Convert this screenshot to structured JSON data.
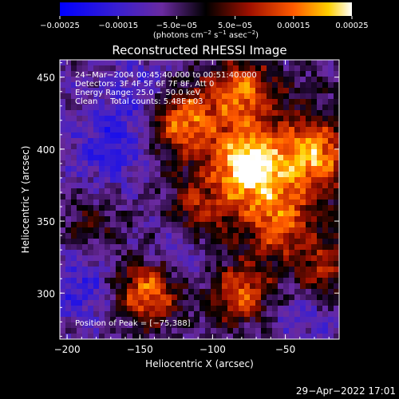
{
  "chart_data": {
    "type": "heatmap",
    "title": "Reconstructed RHESSI Image",
    "xlabel": "Heliocentric X (arcsec)",
    "ylabel": "Heliocentric Y (arcsec)",
    "xlim": [
      -205,
      -13
    ],
    "ylim": [
      268,
      462
    ],
    "xticks": [
      -200,
      -150,
      -100,
      -50
    ],
    "xtick_labels": [
      "−200",
      "−150",
      "−100",
      "−50"
    ],
    "yticks": [
      300,
      350,
      400,
      450
    ],
    "ytick_labels": [
      "300",
      "350",
      "400",
      "450"
    ],
    "colorbar": {
      "range": [
        -0.00025,
        0.00025
      ],
      "ticks": [
        -0.00025,
        -0.00015,
        -5e-05,
        5e-05,
        0.00015,
        0.00025
      ],
      "tick_labels": [
        "−0.00025",
        "−0.00015",
        "−5.0e−05",
        "5.0e−05",
        "0.00015",
        "0.00025"
      ],
      "units_main": "(photons cm",
      "units_exp1": "−2",
      "units_mid": " s",
      "units_exp2": "−1",
      "units_end": " asec",
      "units_exp3": "−2",
      "units_close": ")"
    },
    "annotations": [
      "24−Mar−2004 00:45:40.000 to 00:51:40.000",
      "Detectors: 3F 4F 5F 6F 7F 8F, Att 0",
      "Energy Range: 25.0 − 50.0 keV",
      "Clean     Total counts: 5.48E+03"
    ],
    "peak_label": "Position of Peak = [−75,388]",
    "peak": [
      -75,
      388
    ],
    "hotspots": [
      {
        "x": -75,
        "y": 388,
        "level": 1.0
      },
      {
        "x": -120,
        "y": 420,
        "level": 0.75
      },
      {
        "x": -30,
        "y": 395,
        "level": 0.7
      },
      {
        "x": -55,
        "y": 350,
        "level": 0.6
      },
      {
        "x": -80,
        "y": 440,
        "level": 0.65
      },
      {
        "x": -145,
        "y": 300,
        "level": 0.8
      },
      {
        "x": -80,
        "y": 300,
        "level": 0.7
      },
      {
        "x": -25,
        "y": 315,
        "level": 0.5
      },
      {
        "x": -110,
        "y": 355,
        "level": 0.45
      },
      {
        "x": -185,
        "y": 345,
        "level": 0.3
      }
    ],
    "coldspots": [
      {
        "x": -170,
        "y": 400,
        "level": -0.7
      },
      {
        "x": -150,
        "y": 440,
        "level": -0.5
      },
      {
        "x": -190,
        "y": 305,
        "level": -0.6
      },
      {
        "x": -120,
        "y": 330,
        "level": -0.5
      },
      {
        "x": -40,
        "y": 290,
        "level": -0.45
      }
    ]
  },
  "footer": {
    "date": "29−Apr−2022 17:01"
  },
  "colors": {
    "background": "#000000",
    "text": "#ffffff"
  }
}
